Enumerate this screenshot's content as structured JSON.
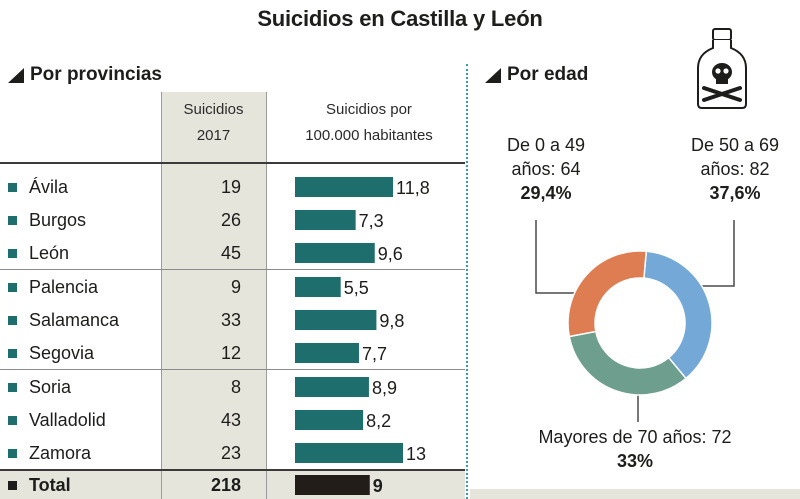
{
  "title": "Suicidios en Castilla y León",
  "provinces_section": {
    "heading": "Por provincias",
    "col_suicides_line1": "Suicidios",
    "col_suicides_line2": "2017",
    "col_rate_line1": "Suicidios por",
    "col_rate_line2": "100.000 habitantes"
  },
  "age_section": {
    "heading": "Por edad",
    "groups": [
      {
        "line1": "De 0 a 49",
        "line2": "años: 64",
        "pct": "29,4%"
      },
      {
        "line1": "De 50 a 69",
        "line2": "años: 82",
        "pct": "37,6%"
      },
      {
        "line1": "Mayores de 70 años: 72",
        "line2": "",
        "pct": "33%"
      }
    ]
  },
  "chart_data": [
    {
      "type": "bar",
      "categories": [
        "Ávila",
        "Burgos",
        "León",
        "Palencia",
        "Salamanca",
        "Segovia",
        "Soria",
        "Valladolid",
        "Zamora",
        "Total"
      ],
      "suicides": [
        19,
        26,
        45,
        9,
        33,
        12,
        8,
        43,
        23,
        218
      ],
      "values": [
        11.8,
        7.3,
        9.6,
        5.5,
        9.8,
        7.7,
        8.9,
        8.2,
        13,
        9
      ],
      "value_labels": [
        "11,8",
        "7,3",
        "9,6",
        "5,5",
        "9,8",
        "7,7",
        "8,9",
        "8,2",
        "13",
        "9"
      ],
      "suicides_labels": [
        "19",
        "26",
        "45",
        "9",
        "33",
        "12",
        "8",
        "43",
        "23",
        "218"
      ],
      "bar_color": "#1e6e6e",
      "total_color": "#221d19"
    },
    {
      "type": "pie",
      "categories": [
        "De 0 a 49 años",
        "De 50 a 69 años",
        "Mayores de 70 años"
      ],
      "counts": [
        64,
        82,
        72
      ],
      "values": [
        29.4,
        37.6,
        33
      ],
      "colors": [
        "#de7c52",
        "#73a8d7",
        "#6e9e8e"
      ]
    }
  ]
}
